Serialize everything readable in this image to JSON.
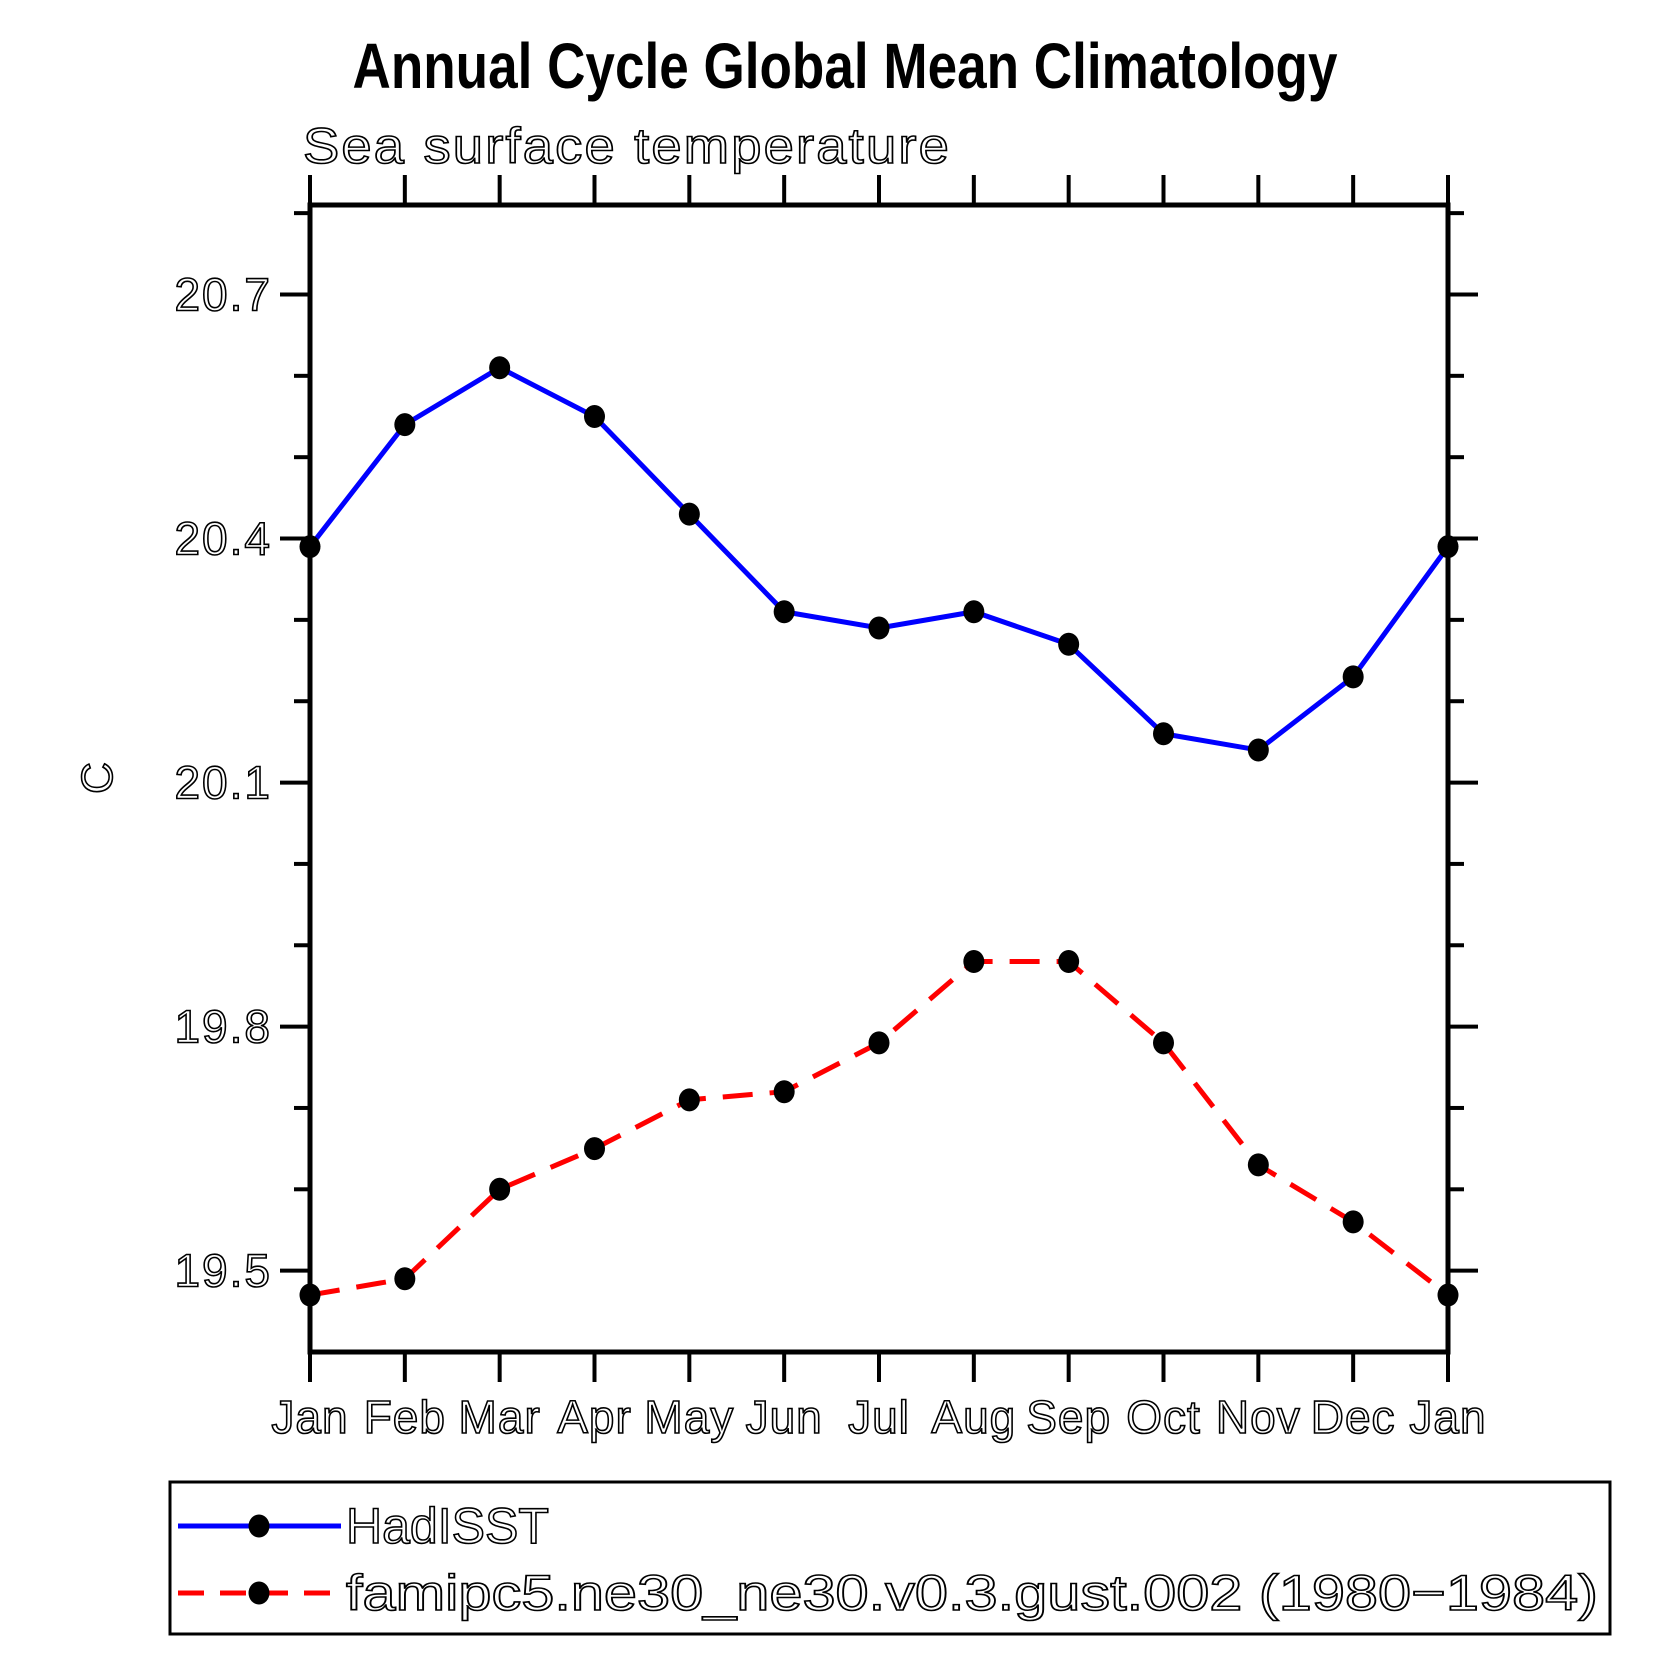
{
  "chart_data": {
    "type": "line",
    "title": "Annual Cycle Global Mean Climatology",
    "subtitle": "Sea surface temperature",
    "ylabel": "C",
    "categories": [
      "Jan",
      "Feb",
      "Mar",
      "Apr",
      "May",
      "Jun",
      "Jul",
      "Aug",
      "Sep",
      "Oct",
      "Nov",
      "Dec",
      "Jan"
    ],
    "y_axis": {
      "tick_labels": [
        "20.7",
        "20.4",
        "20.1",
        "19.8",
        "19.5"
      ],
      "major_ticks": [
        20.7,
        20.4,
        20.1,
        19.8,
        19.5
      ],
      "minor_step": 0.1,
      "minor_range": [
        19.5,
        20.8
      ],
      "ylim": [
        19.4,
        20.81
      ],
      "grid": "off"
    },
    "legend_position": "bottom",
    "marker_color": "#000000",
    "series": [
      {
        "name": "HadISST",
        "color": "#0000ff",
        "style": "solid",
        "values": [
          20.39,
          20.54,
          20.61,
          20.55,
          20.43,
          20.31,
          20.29,
          20.31,
          20.27,
          20.16,
          20.14,
          20.23,
          20.39
        ]
      },
      {
        "name": "famipc5.ne30_ne30.v0.3.gust.002 (1980−1984)",
        "color": "#ff0000",
        "style": "dashed",
        "values": [
          19.47,
          19.49,
          19.6,
          19.65,
          19.71,
          19.72,
          19.78,
          19.88,
          19.88,
          19.78,
          19.63,
          19.56,
          19.47
        ]
      }
    ]
  }
}
